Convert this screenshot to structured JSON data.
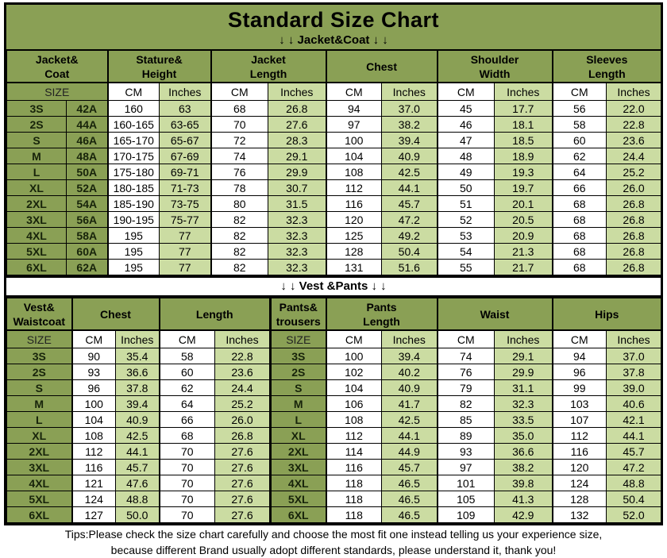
{
  "title": "Standard Size Chart",
  "banners": {
    "jacket": "↓ ↓  Jacket&Coat ↓ ↓",
    "vest": "↓ ↓  Vest &Pants ↓ ↓"
  },
  "labels": {
    "size": "SIZE",
    "cm": "CM",
    "inches": "Inches"
  },
  "colors": {
    "header_green": "#8aa055",
    "light_green": "#cbdca2",
    "cm_column": "#ffffff",
    "border": "#000000"
  },
  "chart_data": [
    {
      "type": "table",
      "title": "Jacket&Coat",
      "groups": [
        "Jacket&\nCoat",
        "Stature&\nHeight",
        "Jacket\nLength",
        "Chest",
        "Shoulder\nWidth",
        "Sleeves\nLength"
      ],
      "unit_pattern": [
        "SIZE",
        "CM",
        "Inches",
        "CM",
        "Inches",
        "CM",
        "Inches",
        "CM",
        "Inches",
        "CM",
        "Inches"
      ],
      "rows": [
        [
          "3S",
          "42A",
          "160",
          "63",
          "68",
          "26.8",
          "94",
          "37.0",
          "45",
          "17.7",
          "56",
          "22.0"
        ],
        [
          "2S",
          "44A",
          "160-165",
          "63-65",
          "70",
          "27.6",
          "97",
          "38.2",
          "46",
          "18.1",
          "58",
          "22.8"
        ],
        [
          "S",
          "46A",
          "165-170",
          "65-67",
          "72",
          "28.3",
          "100",
          "39.4",
          "47",
          "18.5",
          "60",
          "23.6"
        ],
        [
          "M",
          "48A",
          "170-175",
          "67-69",
          "74",
          "29.1",
          "104",
          "40.9",
          "48",
          "18.9",
          "62",
          "24.4"
        ],
        [
          "L",
          "50A",
          "175-180",
          "69-71",
          "76",
          "29.9",
          "108",
          "42.5",
          "49",
          "19.3",
          "64",
          "25.2"
        ],
        [
          "XL",
          "52A",
          "180-185",
          "71-73",
          "78",
          "30.7",
          "112",
          "44.1",
          "50",
          "19.7",
          "66",
          "26.0"
        ],
        [
          "2XL",
          "54A",
          "185-190",
          "73-75",
          "80",
          "31.5",
          "116",
          "45.7",
          "51",
          "20.1",
          "68",
          "26.8"
        ],
        [
          "3XL",
          "56A",
          "190-195",
          "75-77",
          "82",
          "32.3",
          "120",
          "47.2",
          "52",
          "20.5",
          "68",
          "26.8"
        ],
        [
          "4XL",
          "58A",
          "195",
          "77",
          "82",
          "32.3",
          "125",
          "49.2",
          "53",
          "20.9",
          "68",
          "26.8"
        ],
        [
          "5XL",
          "60A",
          "195",
          "77",
          "82",
          "32.3",
          "128",
          "50.4",
          "54",
          "21.3",
          "68",
          "26.8"
        ],
        [
          "6XL",
          "62A",
          "195",
          "77",
          "82",
          "32.3",
          "131",
          "51.6",
          "55",
          "21.7",
          "68",
          "26.8"
        ]
      ]
    },
    {
      "type": "table",
      "title": "Vest &Pants",
      "groups": [
        "Vest&\nWaistcoat",
        "Chest",
        "Length",
        "Pants&\ntrousers",
        "Pants\nLength",
        "Waist",
        "Hips"
      ],
      "unit_pattern": [
        "SIZE",
        "CM",
        "Inches",
        "CM",
        "Inches",
        "SIZE",
        "CM",
        "Inches",
        "CM",
        "Inches",
        "CM",
        "Inches"
      ],
      "rows": [
        [
          "3S",
          "90",
          "35.4",
          "58",
          "22.8",
          "3S",
          "100",
          "39.4",
          "74",
          "29.1",
          "94",
          "37.0"
        ],
        [
          "2S",
          "93",
          "36.6",
          "60",
          "23.6",
          "2S",
          "102",
          "40.2",
          "76",
          "29.9",
          "96",
          "37.8"
        ],
        [
          "S",
          "96",
          "37.8",
          "62",
          "24.4",
          "S",
          "104",
          "40.9",
          "79",
          "31.1",
          "99",
          "39.0"
        ],
        [
          "M",
          "100",
          "39.4",
          "64",
          "25.2",
          "M",
          "106",
          "41.7",
          "82",
          "32.3",
          "103",
          "40.6"
        ],
        [
          "L",
          "104",
          "40.9",
          "66",
          "26.0",
          "L",
          "108",
          "42.5",
          "85",
          "33.5",
          "107",
          "42.1"
        ],
        [
          "XL",
          "108",
          "42.5",
          "68",
          "26.8",
          "XL",
          "112",
          "44.1",
          "89",
          "35.0",
          "112",
          "44.1"
        ],
        [
          "2XL",
          "112",
          "44.1",
          "70",
          "27.6",
          "2XL",
          "114",
          "44.9",
          "93",
          "36.6",
          "116",
          "45.7"
        ],
        [
          "3XL",
          "116",
          "45.7",
          "70",
          "27.6",
          "3XL",
          "116",
          "45.7",
          "97",
          "38.2",
          "120",
          "47.2"
        ],
        [
          "4XL",
          "121",
          "47.6",
          "70",
          "27.6",
          "4XL",
          "118",
          "46.5",
          "101",
          "39.8",
          "124",
          "48.8"
        ],
        [
          "5XL",
          "124",
          "48.8",
          "70",
          "27.6",
          "5XL",
          "118",
          "46.5",
          "105",
          "41.3",
          "128",
          "50.4"
        ],
        [
          "6XL",
          "127",
          "50.0",
          "70",
          "27.6",
          "6XL",
          "118",
          "46.5",
          "109",
          "42.9",
          "132",
          "52.0"
        ]
      ]
    }
  ],
  "tips": {
    "line1": "Tips:Please check the size chart carefully and choose the most fit one instead telling us your experience size,",
    "line2": "because different Brand usually adopt different standards, please understand it, thank you!"
  }
}
